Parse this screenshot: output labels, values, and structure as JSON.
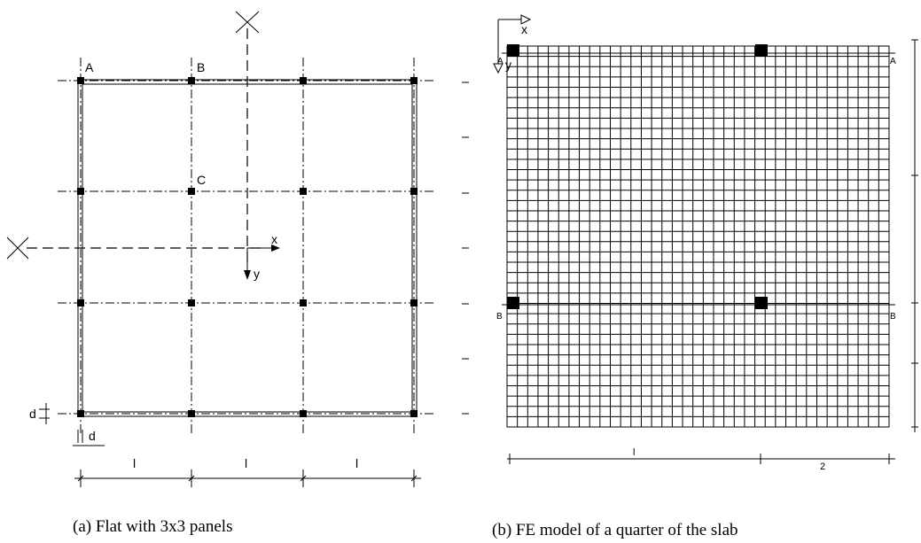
{
  "left": {
    "labels": {
      "a": "A",
      "b": "B",
      "c": "C"
    },
    "axis_x": "x",
    "axis_y": "y",
    "offset_y": "d",
    "offset_x": "d",
    "spans": [
      "l",
      "l",
      "l"
    ],
    "caption": "(a) Flat with 3x3 panels"
  },
  "right": {
    "axis_x": "x",
    "axis_y": "y",
    "section_a": [
      "A",
      "A"
    ],
    "section_b": [
      "B",
      "B"
    ],
    "dim_long": "l",
    "dim_short": "2",
    "caption": "(b) FE model of a quarter of the slab"
  }
}
